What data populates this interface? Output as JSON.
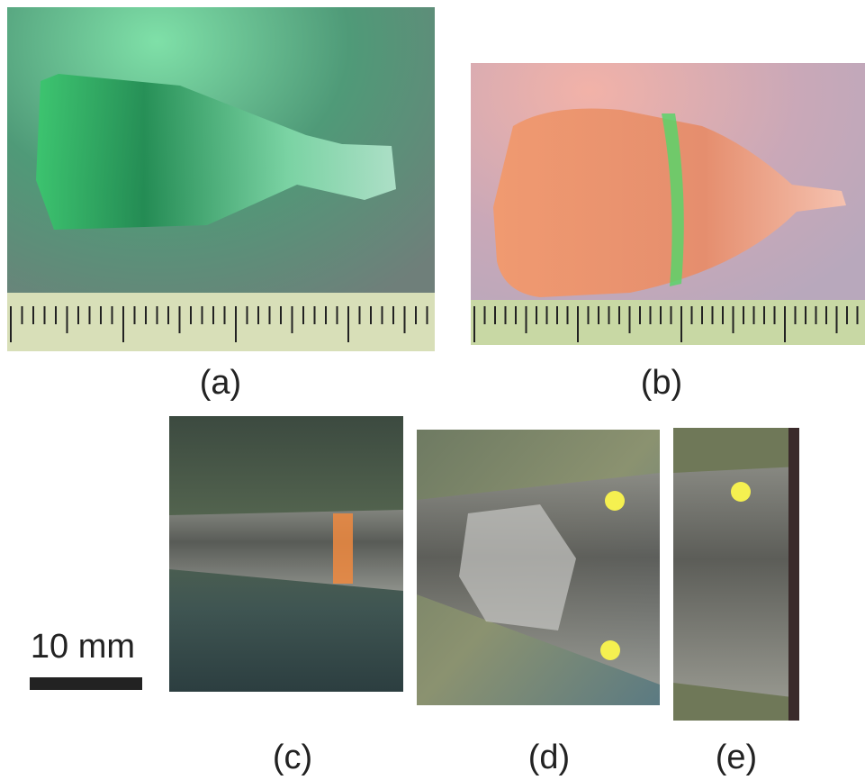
{
  "panels": [
    {
      "label": "(a)"
    },
    {
      "label": "(b)"
    },
    {
      "label": "(c)"
    },
    {
      "label": "(d)"
    },
    {
      "label": "(e)"
    }
  ],
  "scale_bar": {
    "label": "10 mm"
  }
}
